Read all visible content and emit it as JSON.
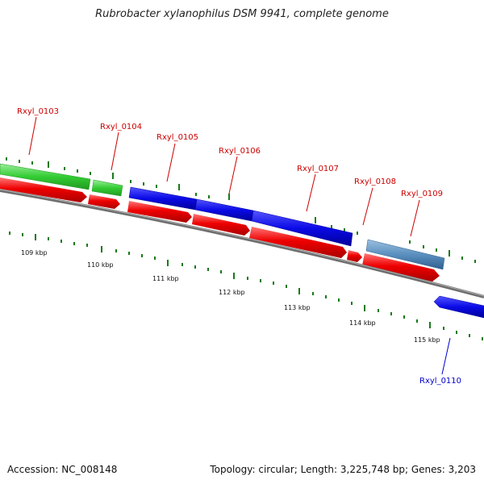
{
  "title": "Rubrobacter xylanophilus DSM 9941, complete genome",
  "footer": {
    "accession": "Accession: NC_008148",
    "topology": "Topology: circular; Length: 3,225,748 bp; Genes: 3,203"
  },
  "colors": {
    "backbone": "#808080",
    "tick": "#1a7a1a",
    "cds": "#ee0000",
    "label_red": "#cc0000",
    "label_blue": "#0000cc",
    "green_feature": "#44cc44",
    "blue_feature": "#0a0ae6",
    "steel_feature": "#5a8fbf"
  },
  "scale_labels": [
    "109 kbp",
    "110 kbp",
    "111 kbp",
    "112 kbp",
    "113 kbp",
    "114 kbp",
    "115 kbp"
  ],
  "gene_labels": [
    "Rxyl_0103",
    "Rxyl_0104",
    "Rxyl_0105",
    "Rxyl_0106",
    "Rxyl_0107",
    "Rxyl_0108",
    "Rxyl_0109",
    "Rxyl_0110"
  ]
}
